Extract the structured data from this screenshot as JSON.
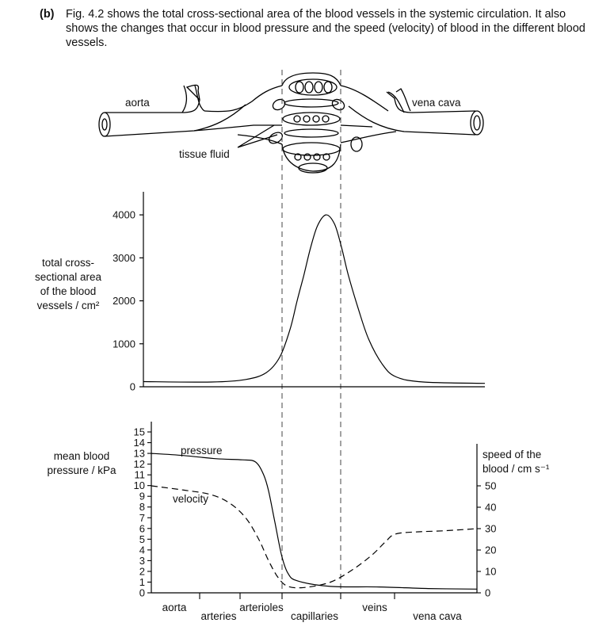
{
  "caption": {
    "label": "(b)",
    "text": "Fig. 4.2 shows the total cross-sectional area of the blood vessels in the systemic circulation. It also shows the changes that occur in blood pressure and the speed (velocity) of blood in the different blood vessels."
  },
  "diagram": {
    "label_aorta": "aorta",
    "label_vena_cava": "vena cava",
    "label_tissue_fluid": "tissue fluid"
  },
  "chart_data": [
    {
      "type": "line",
      "ylabel": [
        "total cross-",
        "sectional area",
        "of the blood",
        "vessels / cm²"
      ],
      "yticks": [
        0,
        1000,
        2000,
        3000,
        4000
      ],
      "ylim": [
        0,
        4500
      ],
      "x_description": "position along systemic circulation (same regions as lower graph)",
      "series": [
        {
          "values": [
            [
              0.0,
              120
            ],
            [
              0.2,
              110
            ],
            [
              0.3,
              170
            ],
            [
              0.36,
              330
            ],
            [
              0.4,
              700
            ],
            [
              0.43,
              1350
            ],
            [
              0.45,
              2000
            ],
            [
              0.47,
              2600
            ],
            [
              0.49,
              3250
            ],
            [
              0.51,
              3750
            ],
            [
              0.535,
              4000
            ],
            [
              0.56,
              3780
            ],
            [
              0.58,
              3250
            ],
            [
              0.6,
              2600
            ],
            [
              0.63,
              1800
            ],
            [
              0.66,
              1100
            ],
            [
              0.7,
              520
            ],
            [
              0.74,
              230
            ],
            [
              0.82,
              110
            ],
            [
              1.0,
              80
            ]
          ]
        }
      ]
    },
    {
      "type": "line",
      "ylabel_left": [
        "mean blood",
        "pressure / kPa"
      ],
      "ylabel_right": [
        "speed of the",
        "blood / cm s⁻¹"
      ],
      "yticks_left": [
        0,
        1,
        2,
        3,
        4,
        5,
        6,
        7,
        8,
        9,
        10,
        11,
        12,
        13,
        14,
        15
      ],
      "ylim_left": [
        0,
        15
      ],
      "yticks_right": [
        0,
        10,
        20,
        30,
        40,
        50
      ],
      "ylim_right": [
        0,
        75
      ],
      "categories": [
        "aorta",
        "arteries",
        "arterioles",
        "capillaries",
        "veins",
        "vena cava"
      ],
      "series": [
        {
          "name": "pressure",
          "axis": "left",
          "values": [
            [
              0.0,
              13.0
            ],
            [
              0.1,
              12.8
            ],
            [
              0.2,
              12.5
            ],
            [
              0.28,
              12.4
            ],
            [
              0.32,
              12.2
            ],
            [
              0.345,
              11.0
            ],
            [
              0.36,
              9.5
            ],
            [
              0.38,
              6.5
            ],
            [
              0.4,
              3.5
            ],
            [
              0.42,
              1.8
            ],
            [
              0.45,
              1.1
            ],
            [
              0.55,
              0.6
            ],
            [
              0.7,
              0.55
            ],
            [
              0.85,
              0.4
            ],
            [
              1.0,
              0.35
            ]
          ]
        },
        {
          "name": "velocity",
          "axis": "right",
          "values": [
            [
              0.0,
              50
            ],
            [
              0.1,
              48
            ],
            [
              0.18,
              46
            ],
            [
              0.24,
              42
            ],
            [
              0.29,
              35
            ],
            [
              0.33,
              25
            ],
            [
              0.36,
              15
            ],
            [
              0.39,
              7
            ],
            [
              0.42,
              3
            ],
            [
              0.47,
              2.5
            ],
            [
              0.55,
              5
            ],
            [
              0.62,
              11
            ],
            [
              0.68,
              18
            ],
            [
              0.72,
              24
            ],
            [
              0.75,
              27.5
            ],
            [
              0.82,
              28.5
            ],
            [
              0.9,
              29
            ],
            [
              1.0,
              30
            ]
          ]
        }
      ]
    }
  ]
}
